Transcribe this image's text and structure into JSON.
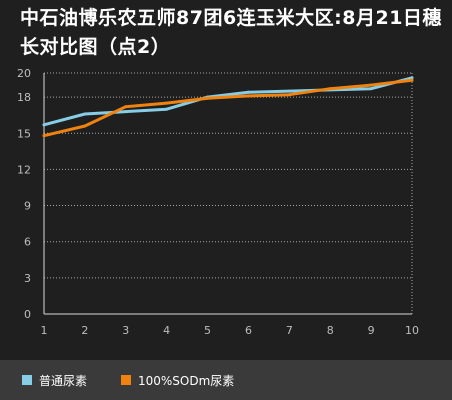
{
  "title": "中石油博乐农五师87团6连玉米大区:8月21日穗长对比图（点2）",
  "colors": {
    "background": "#1f1f1f",
    "legend_background": "#3a3a3a",
    "grid": "#d8d8d8",
    "series_0": "#87cde6",
    "series_1": "#f0830f"
  },
  "chart_data": {
    "type": "line",
    "title": "中石油博乐农五师87团6连玉米大区:8月21日穗长对比图（点2）",
    "xlabel": "",
    "ylabel": "",
    "x": [
      1,
      2,
      3,
      4,
      5,
      6,
      7,
      8,
      9,
      10
    ],
    "xticks": [
      "1",
      "2",
      "3",
      "4",
      "5",
      "6",
      "7",
      "8",
      "9",
      "10"
    ],
    "ylim": [
      0,
      20
    ],
    "yticks": [
      0,
      3,
      6,
      9,
      12,
      15,
      18,
      20
    ],
    "grid": "horizontal-dotted",
    "legend_position": "bottom",
    "series": [
      {
        "name": "普通尿素",
        "color": "#87cde6",
        "values": [
          15.7,
          16.6,
          16.8,
          17.0,
          18.0,
          18.4,
          18.5,
          18.6,
          18.7,
          19.6
        ]
      },
      {
        "name": "100%SODm尿素",
        "color": "#f0830f",
        "values": [
          14.8,
          15.6,
          17.2,
          17.5,
          17.9,
          18.1,
          18.2,
          18.7,
          19.0,
          19.4
        ]
      }
    ]
  }
}
